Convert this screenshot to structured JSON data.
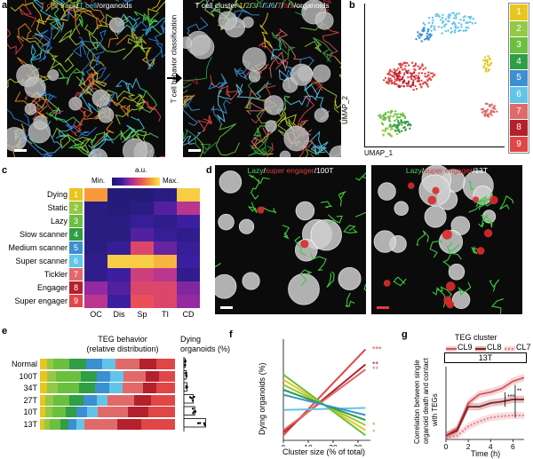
{
  "panel_labels": {
    "a": "a",
    "b": "b",
    "c": "c",
    "d": "d",
    "e": "e",
    "f": "f",
    "g": "g"
  },
  "panel_a": {
    "left_title": [
      {
        "text": "T cell ",
        "color": "#e45050"
      },
      {
        "text": "track",
        "color": "#e9e26a"
      },
      {
        "text": "/",
        "color": "#ffffff"
      },
      {
        "text": "T cell",
        "color": "#3ec7e8"
      },
      {
        "text": "/organoids",
        "color": "#ffffff"
      }
    ],
    "right_title": [
      {
        "text": "T cell cluster ",
        "color": "#ffffff"
      },
      {
        "text": "1",
        "color": "#e8c61e"
      },
      {
        "text": "/",
        "color": "#ffffff"
      },
      {
        "text": "2",
        "color": "#94c846"
      },
      {
        "text": "/",
        "color": "#ffffff"
      },
      {
        "text": "3",
        "color": "#6bbf3e"
      },
      {
        "text": "/",
        "color": "#ffffff"
      },
      {
        "text": "4",
        "color": "#2f9e44"
      },
      {
        "text": "/",
        "color": "#ffffff"
      },
      {
        "text": "5",
        "color": "#3c8fd0"
      },
      {
        "text": "/",
        "color": "#ffffff"
      },
      {
        "text": "6",
        "color": "#62c5e8"
      },
      {
        "text": "/",
        "color": "#ffffff"
      },
      {
        "text": "7",
        "color": "#e06a6a"
      },
      {
        "text": "/",
        "color": "#ffffff"
      },
      {
        "text": "8",
        "color": "#b4202c"
      },
      {
        "text": "/",
        "color": "#ffffff"
      },
      {
        "text": "9",
        "color": "#e14646"
      },
      {
        "text": "/organoids",
        "color": "#ffffff"
      }
    ],
    "arrow_label": "T cell behavior classification"
  },
  "panel_b": {
    "xlabel": "UMAP_1",
    "ylabel": "UMAP_2",
    "cluster_numbers": [
      "1",
      "2",
      "3",
      "4",
      "5",
      "6",
      "7",
      "8",
      "9"
    ],
    "cluster_colors": [
      "#e8c61e",
      "#94c846",
      "#6bbf3e",
      "#2f9e44",
      "#3c8fd0",
      "#62c5e8",
      "#e06a6a",
      "#b4202c",
      "#e14646"
    ]
  },
  "panel_c": {
    "colorbar_title": "a.u.",
    "colorbar_min": "Min.",
    "colorbar_max": "Max.",
    "rows": [
      "Dying",
      "Static",
      "Lazy",
      "Slow scanner",
      "Medium scanner",
      "Super scanner",
      "Tickler",
      "Engager",
      "Super engager"
    ],
    "row_numbers": [
      "1",
      "2",
      "3",
      "4",
      "5",
      "6",
      "7",
      "8",
      "9"
    ],
    "cols": [
      "OC",
      "Dis",
      "Sp",
      "TI",
      "CD"
    ],
    "heatmap_values": [
      [
        0.85,
        0.05,
        0.05,
        0.1,
        0.95
      ],
      [
        0.1,
        0.05,
        0.1,
        0.3,
        0.55
      ],
      [
        0.1,
        0.1,
        0.2,
        0.15,
        0.25
      ],
      [
        0.1,
        0.1,
        0.3,
        0.2,
        0.15
      ],
      [
        0.1,
        0.2,
        0.65,
        0.35,
        0.2
      ],
      [
        0.15,
        0.95,
        0.95,
        0.9,
        0.25
      ],
      [
        0.15,
        0.25,
        0.6,
        0.55,
        0.15
      ],
      [
        0.45,
        0.3,
        0.65,
        0.65,
        0.4
      ],
      [
        0.55,
        0.25,
        0.7,
        0.65,
        0.45
      ]
    ]
  },
  "panel_d": {
    "left_title": [
      {
        "text": "Lazy",
        "color": "#4fd34f"
      },
      {
        "text": "/",
        "color": "#ffffff"
      },
      {
        "text": "super engager",
        "color": "#e23c3c"
      },
      {
        "text": "/100T",
        "color": "#ffffff"
      }
    ],
    "right_title": [
      {
        "text": "Lazy",
        "color": "#4fd34f"
      },
      {
        "text": "/",
        "color": "#ffffff"
      },
      {
        "text": "super engager",
        "color": "#e23c3c"
      },
      {
        "text": "/13T",
        "color": "#ffffff"
      }
    ]
  },
  "panel_e": {
    "title_line1": "TEG behavior",
    "title_line2": "(relative distribution)",
    "right_title_line1": "Dying",
    "right_title_line2": "organoids (%)",
    "rows": [
      "Normal",
      "100T",
      "34T",
      "27T",
      "10T",
      "13T"
    ],
    "segment_colors": [
      "#e8c61e",
      "#94c846",
      "#6bbf3e",
      "#2f9e44",
      "#3c8fd0",
      "#62c5e8",
      "#e06a6a",
      "#b4202c",
      "#e14646"
    ],
    "distribution": [
      [
        0.05,
        0.05,
        0.12,
        0.12,
        0.12,
        0.1,
        0.18,
        0.12,
        0.14
      ],
      [
        0.05,
        0.07,
        0.18,
        0.12,
        0.1,
        0.1,
        0.16,
        0.1,
        0.12
      ],
      [
        0.05,
        0.08,
        0.16,
        0.12,
        0.1,
        0.1,
        0.15,
        0.1,
        0.14
      ],
      [
        0.04,
        0.06,
        0.12,
        0.1,
        0.1,
        0.08,
        0.2,
        0.12,
        0.18
      ],
      [
        0.04,
        0.05,
        0.1,
        0.08,
        0.08,
        0.08,
        0.22,
        0.15,
        0.2
      ],
      [
        0.03,
        0.04,
        0.08,
        0.06,
        0.06,
        0.06,
        0.24,
        0.18,
        0.25
      ]
    ],
    "dying_pct": [
      5,
      8,
      10,
      30,
      35,
      70
    ]
  },
  "panel_f": {
    "ylabel": "Dying organoids (%)",
    "xlabel": "Cluster size (% of total)",
    "x_ticks": [
      "0",
      "10",
      "20",
      "30"
    ],
    "xlim": [
      0,
      35
    ],
    "ylim": [
      0,
      100
    ],
    "significance": [
      {
        "text": "***",
        "color": "#e14646"
      },
      {
        "text": "**",
        "color": "#b4202c"
      },
      {
        "text": "**",
        "color": "#e06a6a"
      },
      {
        "text": "*",
        "color": "#6bbf3e"
      },
      {
        "text": "*",
        "color": "#94c846"
      }
    ]
  },
  "panel_g": {
    "legend_title": "TEG cluster",
    "legend_items": [
      "CL9",
      "CL8",
      "CL7"
    ],
    "subtitle": "13T",
    "ylabel_line1": "Correlation between single",
    "ylabel_line2": "organoid death and contact",
    "ylabel_line3": "with TEGs",
    "xlabel": "Time (h)",
    "x_ticks": [
      "0",
      "2",
      "4",
      "6"
    ],
    "sig1": "***",
    "sig2": "**"
  },
  "chart_data": [
    {
      "type": "heatmap",
      "panel": "c",
      "rows": [
        "Dying",
        "Static",
        "Lazy",
        "Slow scanner",
        "Medium scanner",
        "Super scanner",
        "Tickler",
        "Engager",
        "Super engager"
      ],
      "cols": [
        "OC",
        "Dis",
        "Sp",
        "TI",
        "CD"
      ],
      "scale": "a.u.",
      "values": [
        [
          0.85,
          0.05,
          0.05,
          0.1,
          0.95
        ],
        [
          0.1,
          0.05,
          0.1,
          0.3,
          0.55
        ],
        [
          0.1,
          0.1,
          0.2,
          0.15,
          0.25
        ],
        [
          0.1,
          0.1,
          0.3,
          0.2,
          0.15
        ],
        [
          0.1,
          0.2,
          0.65,
          0.35,
          0.2
        ],
        [
          0.15,
          0.95,
          0.95,
          0.9,
          0.25
        ],
        [
          0.15,
          0.25,
          0.6,
          0.55,
          0.15
        ],
        [
          0.45,
          0.3,
          0.65,
          0.65,
          0.4
        ],
        [
          0.55,
          0.25,
          0.7,
          0.65,
          0.45
        ]
      ]
    },
    {
      "type": "line",
      "panel": "f",
      "xlabel": "Cluster size (% of total)",
      "ylabel": "Dying organoids (%)",
      "xlim": [
        0,
        35
      ],
      "series": [
        {
          "color": "#e14646",
          "points": [
            [
              0,
              5
            ],
            [
              33,
              90
            ]
          ]
        },
        {
          "color": "#b4202c",
          "points": [
            [
              0,
              8
            ],
            [
              33,
              75
            ]
          ]
        },
        {
          "color": "#e06a6a",
          "points": [
            [
              0,
              10
            ],
            [
              33,
              70
            ]
          ]
        },
        {
          "color": "#62c5e8",
          "points": [
            [
              0,
              30
            ],
            [
              33,
              32
            ]
          ]
        },
        {
          "color": "#e8c61e",
          "points": [
            [
              0,
              60
            ],
            [
              33,
              10
            ]
          ]
        },
        {
          "color": "#94c846",
          "points": [
            [
              0,
              55
            ],
            [
              33,
              15
            ]
          ]
        },
        {
          "color": "#6bbf3e",
          "points": [
            [
              0,
              65
            ],
            [
              33,
              5
            ]
          ]
        },
        {
          "color": "#2f9e44",
          "points": [
            [
              0,
              50
            ],
            [
              33,
              20
            ]
          ]
        },
        {
          "color": "#3c8fd0",
          "points": [
            [
              0,
              45
            ],
            [
              33,
              25
            ]
          ]
        }
      ]
    },
    {
      "type": "line",
      "panel": "g",
      "xlabel": "Time (h)",
      "x_ticks": [
        0,
        2,
        4,
        6
      ],
      "xlim": [
        0,
        7
      ],
      "ylim": [
        0,
        1
      ],
      "series": [
        {
          "name": "CL9",
          "color": "#d9525a",
          "x": [
            0,
            1,
            2,
            3,
            4,
            5,
            6,
            7
          ],
          "y": [
            0.05,
            0.15,
            0.5,
            0.62,
            0.65,
            0.7,
            0.8,
            0.85
          ]
        },
        {
          "name": "CL8",
          "color": "#8c1c24",
          "x": [
            0,
            1,
            2,
            3,
            4,
            5,
            6,
            7
          ],
          "y": [
            0.05,
            0.12,
            0.45,
            0.45,
            0.5,
            0.52,
            0.55,
            0.55
          ]
        },
        {
          "name": "CL7",
          "color": "#e57a80",
          "x": [
            0,
            1,
            2,
            3,
            4,
            5,
            6,
            7
          ],
          "y": [
            0.02,
            0.05,
            0.18,
            0.25,
            0.3,
            0.32,
            0.33,
            0.33
          ]
        }
      ]
    }
  ]
}
